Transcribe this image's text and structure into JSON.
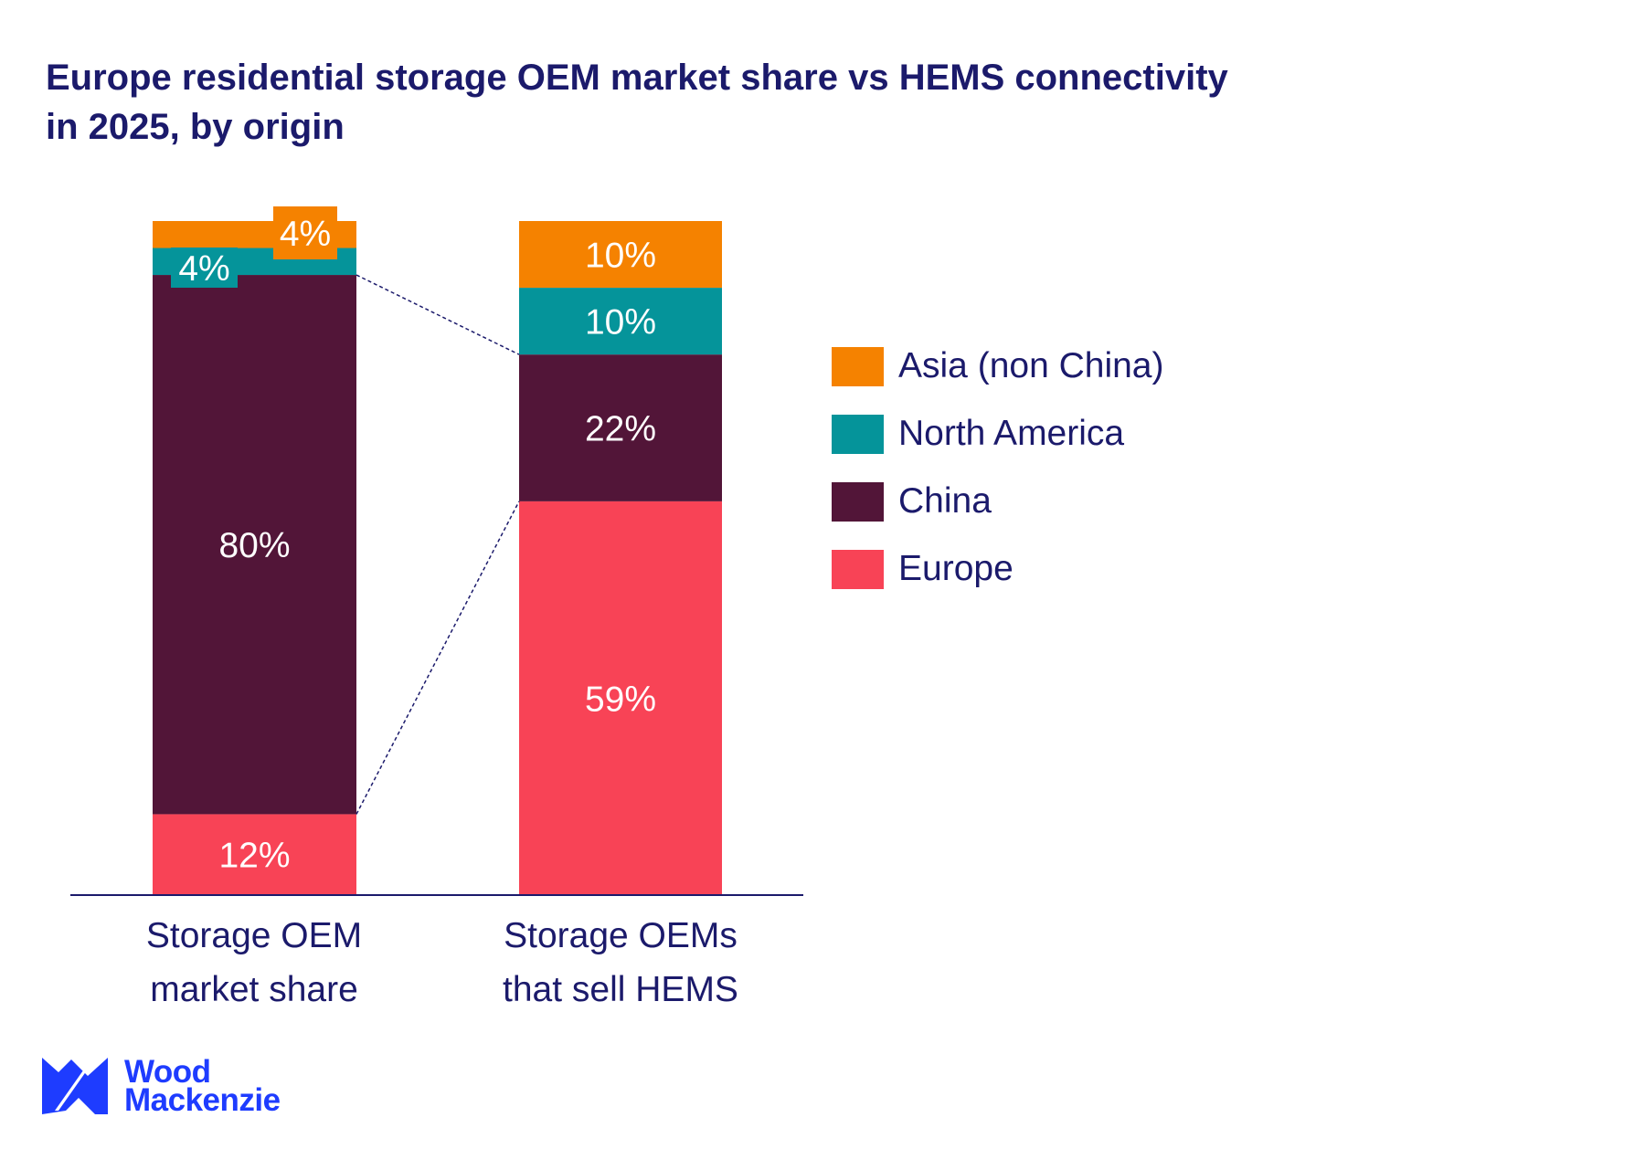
{
  "chart_data": {
    "type": "bar",
    "stacked": true,
    "title": "Europe residential storage OEM market share vs HEMS connectivity in 2025, by origin",
    "categories": [
      "Storage OEM market share",
      "Storage OEMs that sell HEMS"
    ],
    "category_lines": [
      [
        "Storage OEM",
        "market share"
      ],
      [
        "Storage OEMs",
        "that sell HEMS"
      ]
    ],
    "series": [
      {
        "name": "Europe",
        "color": "#F84356",
        "values": [
          12,
          59
        ]
      },
      {
        "name": "China",
        "color": "#521538",
        "values": [
          80,
          22
        ]
      },
      {
        "name": "North America",
        "color": "#05949A",
        "values": [
          4,
          10
        ]
      },
      {
        "name": "Asia (non China)",
        "color": "#F58200",
        "values": [
          4,
          10
        ]
      }
    ],
    "data_labels": [
      [
        "12%",
        "80%",
        "4%",
        "4%"
      ],
      [
        "59%",
        "22%",
        "10%",
        "10%"
      ]
    ],
    "legend_order": [
      "Asia (non China)",
      "North America",
      "China",
      "Europe"
    ],
    "legend_placement": "right",
    "unit": "%",
    "grid": false,
    "y_axis_shown": false
  },
  "brand": {
    "logo_text_line1": "Wood",
    "logo_text_line2": "Mackenzie",
    "color": "#1E3CFF"
  },
  "text_color": "#1B1A6B"
}
